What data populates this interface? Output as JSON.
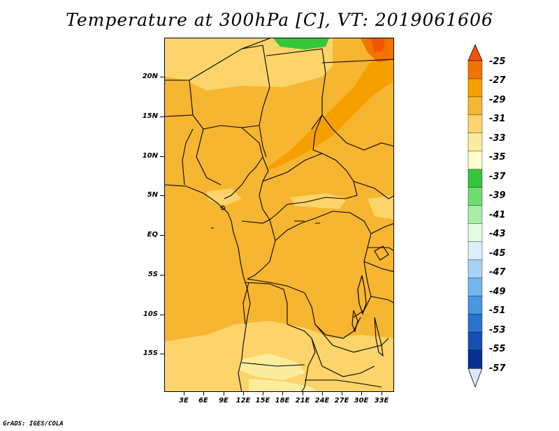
{
  "title": "Temperature at 300hPa [C], VT: 2019061606",
  "credit": "GrADS: IGES/COLA",
  "map": {
    "lat_labels": [
      "20N",
      "15N",
      "10N",
      "5N",
      "EQ",
      "5S",
      "10S",
      "15S"
    ],
    "lon_labels": [
      "3E",
      "6E",
      "9E",
      "12E",
      "15E",
      "18E",
      "21E",
      "24E",
      "27E",
      "30E",
      "33E"
    ]
  },
  "colorbar": {
    "levels": [
      "-25",
      "-27",
      "-29",
      "-31",
      "-33",
      "-35",
      "-37",
      "-39",
      "-41",
      "-43",
      "-45",
      "-47",
      "-49",
      "-51",
      "-53",
      "-55",
      "-57"
    ],
    "colors": [
      "#f25500",
      "#f27300",
      "#f5a000",
      "#f7b631",
      "#fcd46b",
      "#fcec9e",
      "#ffffcc",
      "#36c63c",
      "#6fdc6f",
      "#a8eda8",
      "#e2fce2",
      "#daf0fb",
      "#a8d3f5",
      "#74b7ef",
      "#4797e3",
      "#2a72d2",
      "#1650b5",
      "#082f8f",
      "#0a0d66"
    ],
    "top_arrow_color": "#f25500",
    "bottom_arrow_color": "#dfe8fb"
  }
}
